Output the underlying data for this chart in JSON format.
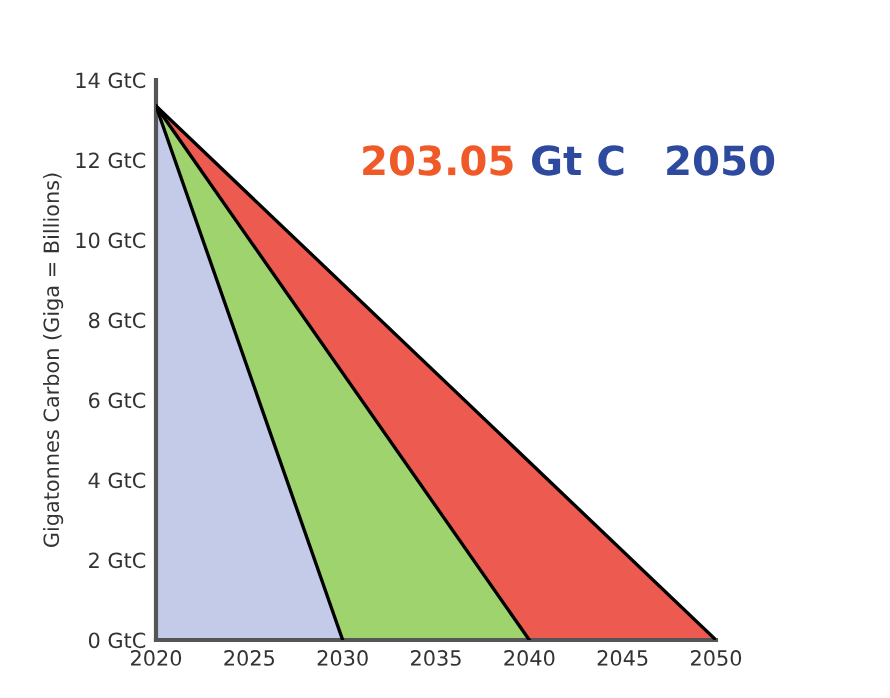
{
  "chart_data": {
    "type": "area",
    "ylabel": "Gigatonnes Carbon (Giga = Billions)",
    "annotations": [
      "203.05",
      "Gt C",
      "2050"
    ],
    "series": [
      {
        "x": [
          2020,
          2030
        ],
        "values": [
          13.35,
          0
        ],
        "color": "#c3cbe8"
      },
      {
        "x": [
          2020,
          2040
        ],
        "values": [
          13.35,
          0
        ],
        "color": "#9fd36e"
      },
      {
        "x": [
          2020,
          2050
        ],
        "values": [
          13.35,
          0
        ],
        "color": "#ec5a50"
      }
    ],
    "xlim": [
      2020,
      2050
    ],
    "xticks": [
      2020,
      2025,
      2030,
      2035,
      2040,
      2045,
      2050
    ],
    "ylim": [
      0,
      14
    ],
    "yticks": [
      {
        "value": 0,
        "label": "0 GtC"
      },
      {
        "value": 2,
        "label": "2 GtC"
      },
      {
        "value": 4,
        "label": "4 GtC"
      },
      {
        "value": 6,
        "label": "6 GtC"
      },
      {
        "value": 8,
        "label": "8 GtC"
      },
      {
        "value": 10,
        "label": "10 GtC"
      },
      {
        "value": 12,
        "label": "12 GtC"
      },
      {
        "value": 14,
        "label": "14 GtC"
      }
    ],
    "grid": false,
    "legend": false
  }
}
